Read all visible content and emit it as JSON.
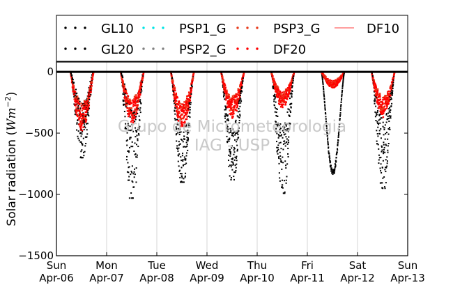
{
  "chart_data": {
    "type": "scatter",
    "title": "",
    "ylabel": "Solar radiation ($Wm^{-2}$)",
    "ylabel_parts": {
      "main": "Solar radiation (",
      "unit_base": "Wm",
      "unit_exp": "−2",
      "close": ")"
    },
    "ylim": [
      -1500,
      80
    ],
    "yticks": [
      0,
      -500,
      -1000,
      -1500
    ],
    "ytick_labels": [
      "0",
      "−500",
      "−1000",
      "−1500"
    ],
    "xlim": [
      "2014-04-06",
      "2014-04-13"
    ],
    "xticks": [
      {
        "day": "Sun",
        "date": "Apr-06"
      },
      {
        "day": "Mon",
        "date": "Apr-07"
      },
      {
        "day": "Tue",
        "date": "Apr-08"
      },
      {
        "day": "Wed",
        "date": "Apr-09"
      },
      {
        "day": "Thu",
        "date": "Apr-10"
      },
      {
        "day": "Fri",
        "date": "Apr-11"
      },
      {
        "day": "Sat",
        "date": "Apr-12"
      },
      {
        "day": "Sun",
        "date": "Apr-13"
      }
    ],
    "grid": "vertical",
    "legend_position": "top",
    "watermark": [
      "Grupo de Micrometeorologia",
      "IAG - USP"
    ],
    "legend": [
      {
        "name": "GL10",
        "color": "#000000",
        "style": "dots"
      },
      {
        "name": "GL20",
        "color": "#000000",
        "style": "dots"
      },
      {
        "name": "PSP1_G",
        "color": "#00e5e5",
        "style": "dots"
      },
      {
        "name": "PSP2_G",
        "color": "#808080",
        "style": "dots"
      },
      {
        "name": "PSP3_G",
        "color": "#e83c1c",
        "style": "dots"
      },
      {
        "name": "DF20",
        "color": "#ff0000",
        "style": "dots"
      },
      {
        "name": "DF10",
        "color": "#ff7f7f",
        "style": "line"
      }
    ],
    "daily_peaks": [
      {
        "day": "Apr-06",
        "global": -700,
        "diffuse": -480
      },
      {
        "day": "Apr-07",
        "global": -1030,
        "diffuse": -420
      },
      {
        "day": "Apr-08",
        "global": -900,
        "diffuse": -480
      },
      {
        "day": "Apr-09",
        "global": -880,
        "diffuse": -380
      },
      {
        "day": "Apr-10",
        "global": -990,
        "diffuse": -300
      },
      {
        "day": "Apr-11",
        "global": -840,
        "diffuse": -130
      },
      {
        "day": "Apr-12",
        "global": -950,
        "diffuse": -370
      }
    ]
  }
}
